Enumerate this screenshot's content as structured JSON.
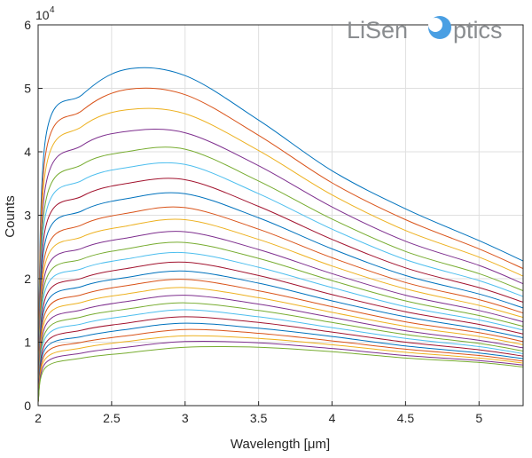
{
  "chart_data": {
    "type": "line",
    "xlabel": "Wavelength [μm]",
    "ylabel": "Counts",
    "xlim": [
      2,
      5.3
    ],
    "ylim": [
      0,
      60000
    ],
    "x_ticks": [
      "2",
      "2.5",
      "3",
      "3.5",
      "4",
      "4.5",
      "5"
    ],
    "y_ticks": [
      "0",
      "1",
      "2",
      "3",
      "4",
      "5",
      "6"
    ],
    "y_multiplier_base": "10",
    "y_multiplier_exp": "4",
    "grid": true,
    "legend": "none",
    "x": [
      2.0,
      2.05,
      2.3,
      2.6,
      3.0,
      3.5,
      4.0,
      4.5,
      5.0,
      5.3
    ],
    "series": [
      {
        "values": [
          800,
          42000,
          49000,
          53000,
          52000,
          45000,
          37000,
          31000,
          26000,
          22800
        ]
      },
      {
        "values": [
          790,
          39500,
          46500,
          49800,
          49000,
          42600,
          35100,
          29300,
          24700,
          21600
        ]
      },
      {
        "values": [
          780,
          37000,
          44000,
          46600,
          46000,
          40200,
          33200,
          27600,
          23400,
          20400
        ]
      },
      {
        "values": [
          770,
          34500,
          41000,
          43200,
          43000,
          37800,
          31300,
          25900,
          22100,
          19200
        ]
      },
      {
        "values": [
          760,
          32000,
          38000,
          40000,
          40400,
          35400,
          29400,
          24300,
          20800,
          18100
        ]
      },
      {
        "values": [
          750,
          30000,
          35500,
          37500,
          38000,
          33400,
          27800,
          23000,
          19700,
          17200
        ]
      },
      {
        "values": [
          740,
          28000,
          33000,
          35000,
          35600,
          31400,
          26200,
          21700,
          18600,
          16300
        ]
      },
      {
        "values": [
          730,
          26000,
          30700,
          32600,
          33400,
          29600,
          24700,
          20500,
          17600,
          15400
        ]
      },
      {
        "values": [
          720,
          24000,
          28500,
          30300,
          31200,
          27800,
          23300,
          19400,
          16700,
          14600
        ]
      },
      {
        "values": [
          710,
          22500,
          26600,
          28300,
          29300,
          26200,
          22000,
          18400,
          15800,
          13900
        ]
      },
      {
        "values": [
          700,
          21000,
          24800,
          26400,
          27400,
          24600,
          20800,
          17400,
          15000,
          13200
        ]
      },
      {
        "values": [
          690,
          19600,
          23100,
          24700,
          25700,
          23200,
          19700,
          16500,
          14200,
          12500
        ]
      },
      {
        "values": [
          680,
          18300,
          21600,
          23100,
          24100,
          21800,
          18600,
          15600,
          13500,
          11900
        ]
      },
      {
        "values": [
          670,
          17000,
          20100,
          21600,
          22600,
          20500,
          17500,
          14800,
          12800,
          11300
        ]
      },
      {
        "values": [
          660,
          15800,
          18800,
          20200,
          21200,
          19300,
          16500,
          14000,
          12100,
          10700
        ]
      },
      {
        "values": [
          650,
          14700,
          17500,
          18900,
          19900,
          18100,
          15600,
          13200,
          11500,
          10100
        ]
      },
      {
        "values": [
          640,
          13600,
          16300,
          17600,
          18600,
          17000,
          14700,
          12500,
          10900,
          9600
        ]
      },
      {
        "values": [
          630,
          12600,
          15100,
          16400,
          17400,
          16000,
          13900,
          11800,
          10300,
          9100
        ]
      },
      {
        "values": [
          620,
          11600,
          14000,
          15200,
          16200,
          15000,
          13100,
          11200,
          9800,
          8600
        ]
      },
      {
        "values": [
          610,
          10700,
          12900,
          14100,
          15100,
          14000,
          12300,
          10600,
          9300,
          8200
        ]
      },
      {
        "values": [
          600,
          9800,
          11900,
          13000,
          14000,
          13100,
          11600,
          10000,
          8800,
          7800
        ]
      },
      {
        "values": [
          590,
          9000,
          10900,
          12000,
          13000,
          12200,
          10900,
          9400,
          8300,
          7400
        ]
      },
      {
        "values": [
          580,
          8200,
          10000,
          11000,
          12000,
          11400,
          10200,
          8900,
          7900,
          7000
        ]
      },
      {
        "values": [
          570,
          7400,
          9100,
          10100,
          11000,
          10600,
          9600,
          8400,
          7500,
          6700
        ]
      },
      {
        "values": [
          560,
          6700,
          8300,
          9200,
          10100,
          9900,
          9000,
          7900,
          7100,
          6400
        ]
      },
      {
        "values": [
          550,
          6000,
          7500,
          8300,
          9200,
          9200,
          8500,
          7500,
          6800,
          6100
        ]
      }
    ],
    "colors": [
      "#0072BD",
      "#D95319",
      "#EDB120",
      "#7E2F8E",
      "#77AC30",
      "#4DBEEE",
      "#A2142F"
    ]
  },
  "watermark": {
    "text_before": "LiSen",
    "text_after": "ptics"
  }
}
